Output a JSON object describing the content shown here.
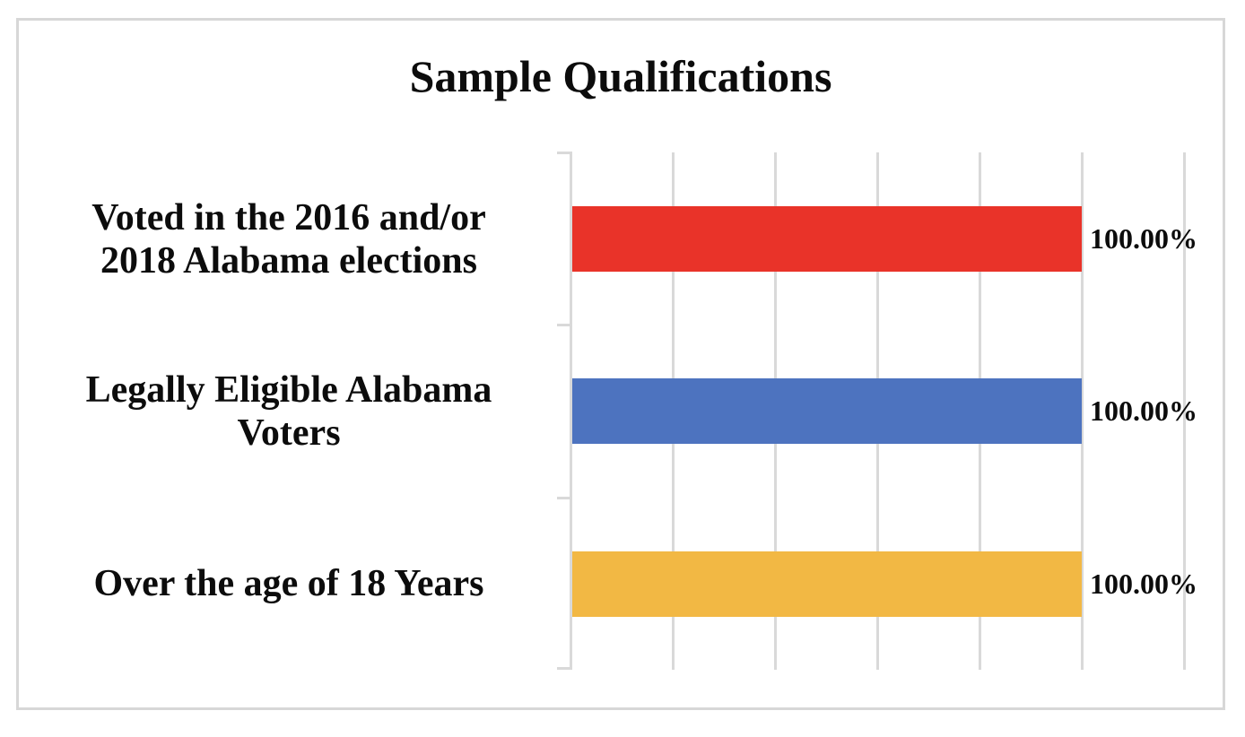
{
  "chart": {
    "title": "Sample Qualifications"
  },
  "chart_data": {
    "type": "bar",
    "orientation": "horizontal",
    "title": "Sample Qualifications",
    "categories": [
      "Voted in the 2016 and/or 2018 Alabama elections",
      "Legally Eligible Alabama Voters",
      "Over the age of 18 Years"
    ],
    "values": [
      100,
      100,
      100
    ],
    "value_labels": [
      "100.00%",
      "100.00%",
      "100.00%"
    ],
    "xlabel": "",
    "ylabel": "",
    "xlim": [
      0,
      120
    ],
    "x_major_unit": 20,
    "grid": true,
    "gridline_color": "#d9d9d9",
    "legend": "none",
    "bars": [
      {
        "category": "Voted in the 2016 and/or 2018 Alabama elections",
        "lines": [
          "Voted in the 2016 and/or",
          "2018 Alabama elections"
        ],
        "value": 100,
        "value_label": "100.00%",
        "color": "#e93329"
      },
      {
        "category": "Legally Eligible Alabama Voters",
        "lines": [
          "Legally Eligible Alabama",
          "Voters"
        ],
        "value": 100,
        "value_label": "100.00%",
        "color": "#4d73bf"
      },
      {
        "category": "Over the age of 18 Years",
        "lines": [
          "Over the age of 18 Years"
        ],
        "value": 100,
        "value_label": "100.00%",
        "color": "#f2b844"
      }
    ]
  }
}
